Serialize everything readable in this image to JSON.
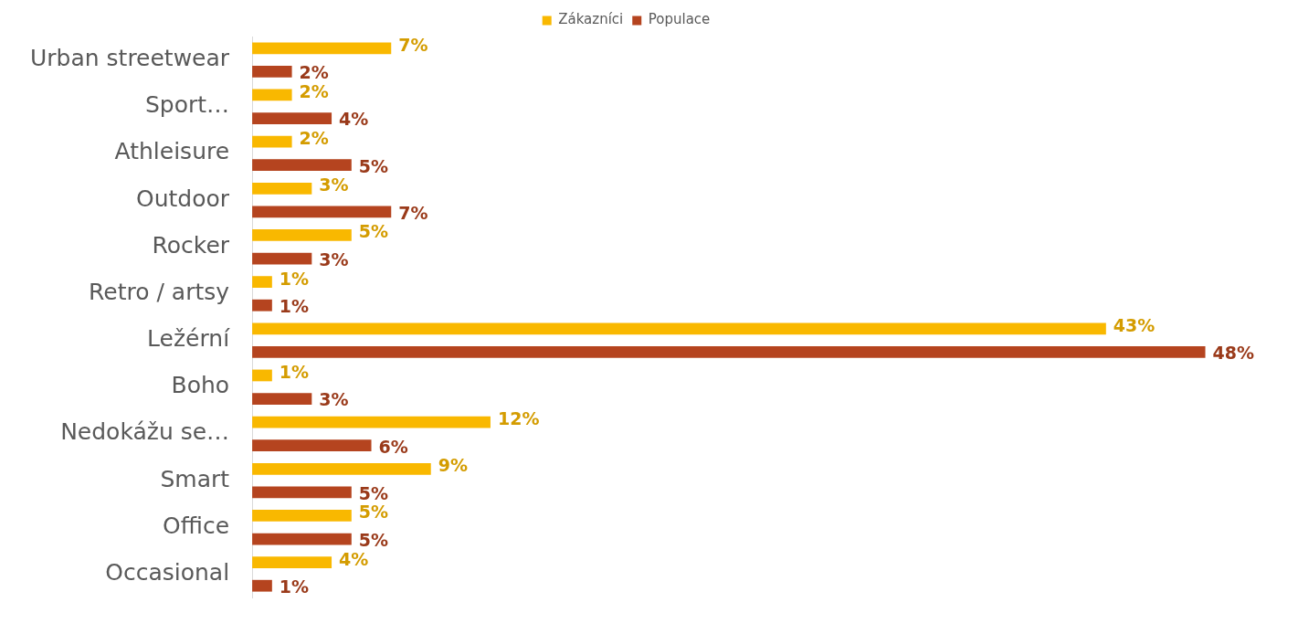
{
  "chart_data": {
    "type": "bar",
    "orientation": "horizontal",
    "categories": [
      "Urban streetwear",
      "Sport…",
      "Athleisure",
      "Outdoor",
      "Rocker",
      "Retro / artsy",
      "Ležérní",
      "Boho",
      "Nedokážu se…",
      "Smart",
      "Office",
      "Occasional"
    ],
    "series": [
      {
        "name": "Zákazníci",
        "color": "#f9b800",
        "values": [
          7,
          2,
          2,
          3,
          5,
          1,
          43,
          1,
          12,
          9,
          5,
          4
        ],
        "value_labels": [
          "7%",
          "2%",
          "2%",
          "3%",
          "5%",
          "1%",
          "43%",
          "1%",
          "12%",
          "9%",
          "5%",
          "4%"
        ]
      },
      {
        "name": "Populace",
        "color": "#b5441f",
        "values": [
          2,
          4,
          5,
          7,
          3,
          1,
          48,
          3,
          6,
          5,
          5,
          1
        ],
        "value_labels": [
          "2%",
          "4%",
          "5%",
          "7%",
          "3%",
          "1%",
          "48%",
          "3%",
          "6%",
          "5%",
          "5%",
          "1%"
        ]
      }
    ],
    "legend": "top",
    "grid": false,
    "tick_labels": "y"
  }
}
